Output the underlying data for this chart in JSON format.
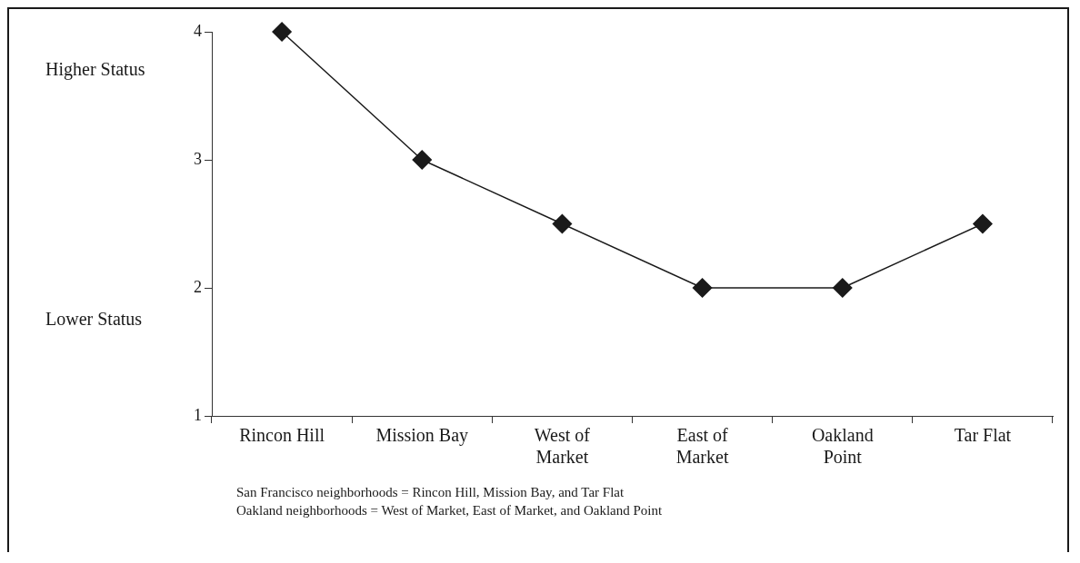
{
  "chart_data": {
    "type": "line",
    "categories": [
      "Rincon Hill",
      "Mission Bay",
      "West of Market",
      "East of Market",
      "Oakland Point",
      "Tar Flat"
    ],
    "series": [
      {
        "color": "#1a1a1a",
        "values": [
          4,
          3,
          2.5,
          2,
          2,
          2.5
        ]
      }
    ],
    "ylim": [
      1,
      4
    ],
    "yticks": [
      1,
      2,
      3,
      4
    ],
    "grid": false,
    "legend": false,
    "marker": "diamond",
    "line_style": "solid",
    "annotations": [
      "Higher Status",
      "Lower Status",
      "San Francisco neighborhoods = Rincon Hill, Mission Bay, and Tar Flat",
      "Oakland neighborhoods = West of Market, East of Market, and Oakland Point"
    ]
  }
}
